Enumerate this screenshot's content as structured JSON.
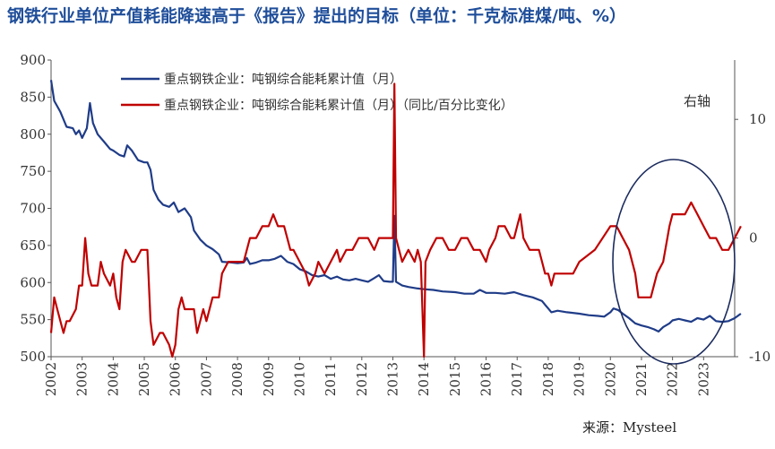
{
  "title": "钢铁行业单位产值耗能降速高于《报告》提出的目标（单位：千克标准煤/吨、%）",
  "source": "来源：Mysteel",
  "right_axis_note": "右轴",
  "chart_data": {
    "type": "line",
    "title": "钢铁行业单位产值耗能降速高于《报告》提出的目标（单位：千克标准煤/吨、%）",
    "x_range": [
      2002,
      2024
    ],
    "x_ticks": [
      "2002",
      "2003",
      "2004",
      "2005",
      "2006",
      "2007",
      "2008",
      "2009",
      "2010",
      "2011",
      "2012",
      "2013",
      "2014",
      "2015",
      "2016",
      "2017",
      "2018",
      "2019",
      "2020",
      "2021",
      "2022",
      "2023"
    ],
    "y_left": {
      "range": [
        500,
        900
      ],
      "ticks": [
        "500",
        "550",
        "600",
        "650",
        "700",
        "750",
        "800",
        "850",
        "900"
      ]
    },
    "y_right": {
      "range": [
        -10,
        15
      ],
      "ticks": [
        "-10",
        "0",
        "10"
      ]
    },
    "legend_position": "top-left",
    "annotation": "ellipse highlighting 2020–2023",
    "series": [
      {
        "name": "重点钢铁企业：吨钢综合能耗累计值（月）",
        "axis": "left",
        "color": "#1f3c88",
        "points": [
          [
            2002.0,
            873
          ],
          [
            2002.1,
            845
          ],
          [
            2002.3,
            830
          ],
          [
            2002.5,
            810
          ],
          [
            2002.7,
            808
          ],
          [
            2002.8,
            800
          ],
          [
            2002.9,
            805
          ],
          [
            2003.0,
            795
          ],
          [
            2003.15,
            808
          ],
          [
            2003.25,
            842
          ],
          [
            2003.35,
            815
          ],
          [
            2003.5,
            800
          ],
          [
            2003.7,
            790
          ],
          [
            2003.9,
            780
          ],
          [
            2004.0,
            778
          ],
          [
            2004.2,
            772
          ],
          [
            2004.35,
            770
          ],
          [
            2004.45,
            785
          ],
          [
            2004.6,
            778
          ],
          [
            2004.8,
            765
          ],
          [
            2005.0,
            762
          ],
          [
            2005.1,
            762
          ],
          [
            2005.2,
            752
          ],
          [
            2005.3,
            725
          ],
          [
            2005.45,
            712
          ],
          [
            2005.6,
            705
          ],
          [
            2005.8,
            702
          ],
          [
            2005.95,
            708
          ],
          [
            2006.1,
            695
          ],
          [
            2006.3,
            700
          ],
          [
            2006.5,
            688
          ],
          [
            2006.6,
            670
          ],
          [
            2006.8,
            658
          ],
          [
            2007.0,
            650
          ],
          [
            2007.2,
            645
          ],
          [
            2007.4,
            638
          ],
          [
            2007.5,
            628
          ],
          [
            2007.8,
            627
          ],
          [
            2008.0,
            626
          ],
          [
            2008.2,
            627
          ],
          [
            2008.3,
            633
          ],
          [
            2008.4,
            625
          ],
          [
            2008.6,
            627
          ],
          [
            2008.8,
            630
          ],
          [
            2009.0,
            630
          ],
          [
            2009.2,
            632
          ],
          [
            2009.4,
            636
          ],
          [
            2009.6,
            628
          ],
          [
            2009.8,
            625
          ],
          [
            2010.0,
            618
          ],
          [
            2010.2,
            615
          ],
          [
            2010.4,
            610
          ],
          [
            2010.6,
            608
          ],
          [
            2010.8,
            610
          ],
          [
            2011.0,
            605
          ],
          [
            2011.2,
            608
          ],
          [
            2011.4,
            604
          ],
          [
            2011.6,
            603
          ],
          [
            2011.8,
            605
          ],
          [
            2012.0,
            603
          ],
          [
            2012.2,
            601
          ],
          [
            2012.4,
            606
          ],
          [
            2012.55,
            610
          ],
          [
            2012.7,
            602
          ],
          [
            2012.9,
            601
          ],
          [
            2013.0,
            601
          ],
          [
            2013.05,
            690
          ],
          [
            2013.1,
            601
          ],
          [
            2013.3,
            596
          ],
          [
            2013.5,
            594
          ],
          [
            2013.8,
            592
          ],
          [
            2014.0,
            591
          ],
          [
            2014.3,
            590
          ],
          [
            2014.6,
            588
          ],
          [
            2015.0,
            587
          ],
          [
            2015.3,
            585
          ],
          [
            2015.6,
            585
          ],
          [
            2015.8,
            590
          ],
          [
            2016.0,
            586
          ],
          [
            2016.3,
            586
          ],
          [
            2016.6,
            585
          ],
          [
            2016.9,
            587
          ],
          [
            2017.2,
            583
          ],
          [
            2017.5,
            580
          ],
          [
            2017.8,
            575
          ],
          [
            2017.9,
            570
          ],
          [
            2018.0,
            565
          ],
          [
            2018.1,
            560
          ],
          [
            2018.3,
            562
          ],
          [
            2018.6,
            560
          ],
          [
            2019.0,
            558
          ],
          [
            2019.3,
            556
          ],
          [
            2019.6,
            555
          ],
          [
            2019.8,
            554
          ],
          [
            2020.0,
            560
          ],
          [
            2020.1,
            565
          ],
          [
            2020.25,
            563
          ],
          [
            2020.4,
            558
          ],
          [
            2020.6,
            552
          ],
          [
            2020.8,
            545
          ],
          [
            2021.0,
            542
          ],
          [
            2021.2,
            540
          ],
          [
            2021.4,
            537
          ],
          [
            2021.55,
            534
          ],
          [
            2021.7,
            540
          ],
          [
            2021.9,
            545
          ],
          [
            2022.0,
            549
          ],
          [
            2022.2,
            551
          ],
          [
            2022.4,
            549
          ],
          [
            2022.6,
            547
          ],
          [
            2022.8,
            552
          ],
          [
            2023.0,
            550
          ],
          [
            2023.2,
            555
          ],
          [
            2023.4,
            548
          ],
          [
            2023.6,
            547
          ],
          [
            2023.8,
            548
          ],
          [
            2024.0,
            552
          ],
          [
            2024.2,
            558
          ]
        ]
      },
      {
        "name": "重点钢铁企业：吨钢综合能耗累计值（月）（同比/百分比变化）",
        "axis": "right",
        "color": "#c00000",
        "points": [
          [
            2002.0,
            -8
          ],
          [
            2002.1,
            -5
          ],
          [
            2002.2,
            -6
          ],
          [
            2002.3,
            -7
          ],
          [
            2002.4,
            -8
          ],
          [
            2002.5,
            -7
          ],
          [
            2002.6,
            -7
          ],
          [
            2002.8,
            -6
          ],
          [
            2002.9,
            -4
          ],
          [
            2003.0,
            -4
          ],
          [
            2003.1,
            0
          ],
          [
            2003.2,
            -3
          ],
          [
            2003.3,
            -4
          ],
          [
            2003.5,
            -4
          ],
          [
            2003.6,
            -2
          ],
          [
            2003.7,
            -3
          ],
          [
            2003.9,
            -4
          ],
          [
            2004.0,
            -3
          ],
          [
            2004.1,
            -5
          ],
          [
            2004.2,
            -6
          ],
          [
            2004.3,
            -2
          ],
          [
            2004.4,
            -1
          ],
          [
            2004.6,
            -2
          ],
          [
            2004.7,
            -2
          ],
          [
            2004.9,
            -1
          ],
          [
            2005.0,
            -1
          ],
          [
            2005.1,
            -1
          ],
          [
            2005.2,
            -7
          ],
          [
            2005.3,
            -9
          ],
          [
            2005.5,
            -8
          ],
          [
            2005.6,
            -8
          ],
          [
            2005.8,
            -9
          ],
          [
            2005.9,
            -10
          ],
          [
            2006.0,
            -9
          ],
          [
            2006.1,
            -6
          ],
          [
            2006.2,
            -5
          ],
          [
            2006.3,
            -6
          ],
          [
            2006.5,
            -6
          ],
          [
            2006.6,
            -6
          ],
          [
            2006.7,
            -8
          ],
          [
            2006.9,
            -6
          ],
          [
            2007.0,
            -7
          ],
          [
            2007.2,
            -5
          ],
          [
            2007.4,
            -5
          ],
          [
            2007.5,
            -3
          ],
          [
            2007.7,
            -2
          ],
          [
            2007.9,
            -2
          ],
          [
            2008.0,
            -2
          ],
          [
            2008.2,
            -2
          ],
          [
            2008.3,
            -1
          ],
          [
            2008.4,
            0
          ],
          [
            2008.6,
            0
          ],
          [
            2008.8,
            1
          ],
          [
            2009.0,
            1
          ],
          [
            2009.15,
            2
          ],
          [
            2009.3,
            1
          ],
          [
            2009.5,
            1
          ],
          [
            2009.7,
            -1
          ],
          [
            2009.8,
            -1
          ],
          [
            2010.0,
            -2
          ],
          [
            2010.2,
            -3
          ],
          [
            2010.3,
            -4
          ],
          [
            2010.5,
            -3
          ],
          [
            2010.6,
            -2
          ],
          [
            2010.8,
            -3
          ],
          [
            2011.0,
            -2
          ],
          [
            2011.2,
            -1
          ],
          [
            2011.3,
            -2
          ],
          [
            2011.5,
            -1
          ],
          [
            2011.7,
            -1
          ],
          [
            2011.9,
            0
          ],
          [
            2012.0,
            0
          ],
          [
            2012.2,
            0
          ],
          [
            2012.4,
            -1
          ],
          [
            2012.55,
            0
          ],
          [
            2012.7,
            0
          ],
          [
            2012.8,
            0
          ],
          [
            2012.9,
            0
          ],
          [
            2013.0,
            0
          ],
          [
            2013.05,
            13
          ],
          [
            2013.1,
            0
          ],
          [
            2013.2,
            -1
          ],
          [
            2013.3,
            -2
          ],
          [
            2013.5,
            -1
          ],
          [
            2013.7,
            -2
          ],
          [
            2013.8,
            -1
          ],
          [
            2013.9,
            -2
          ],
          [
            2014.0,
            -10
          ],
          [
            2014.05,
            -2
          ],
          [
            2014.2,
            -1
          ],
          [
            2014.4,
            0
          ],
          [
            2014.6,
            0
          ],
          [
            2014.8,
            -1
          ],
          [
            2015.0,
            -1
          ],
          [
            2015.2,
            0
          ],
          [
            2015.4,
            0
          ],
          [
            2015.6,
            -1
          ],
          [
            2015.8,
            -1
          ],
          [
            2016.0,
            -2
          ],
          [
            2016.1,
            -1
          ],
          [
            2016.3,
            0
          ],
          [
            2016.4,
            1
          ],
          [
            2016.6,
            1
          ],
          [
            2016.8,
            0
          ],
          [
            2016.9,
            0
          ],
          [
            2017.0,
            1
          ],
          [
            2017.1,
            2
          ],
          [
            2017.2,
            0
          ],
          [
            2017.4,
            -1
          ],
          [
            2017.5,
            -1
          ],
          [
            2017.7,
            -1
          ],
          [
            2017.8,
            -2
          ],
          [
            2017.9,
            -3
          ],
          [
            2018.0,
            -3
          ],
          [
            2018.1,
            -4
          ],
          [
            2018.2,
            -3
          ],
          [
            2018.5,
            -3
          ],
          [
            2018.8,
            -3
          ],
          [
            2019.0,
            -2
          ],
          [
            2019.5,
            -1
          ],
          [
            2020.0,
            1
          ],
          [
            2020.2,
            1
          ],
          [
            2020.4,
            0
          ],
          [
            2020.6,
            -1
          ],
          [
            2020.8,
            -3
          ],
          [
            2020.9,
            -5
          ],
          [
            2021.1,
            -5
          ],
          [
            2021.3,
            -5
          ],
          [
            2021.5,
            -3
          ],
          [
            2021.7,
            -2
          ],
          [
            2021.9,
            1
          ],
          [
            2022.0,
            2
          ],
          [
            2022.2,
            2
          ],
          [
            2022.4,
            2
          ],
          [
            2022.6,
            3
          ],
          [
            2022.8,
            2
          ],
          [
            2023.0,
            1
          ],
          [
            2023.2,
            0
          ],
          [
            2023.4,
            0
          ],
          [
            2023.6,
            -1
          ],
          [
            2023.8,
            -1
          ],
          [
            2024.0,
            0
          ],
          [
            2024.2,
            1
          ]
        ]
      }
    ]
  }
}
